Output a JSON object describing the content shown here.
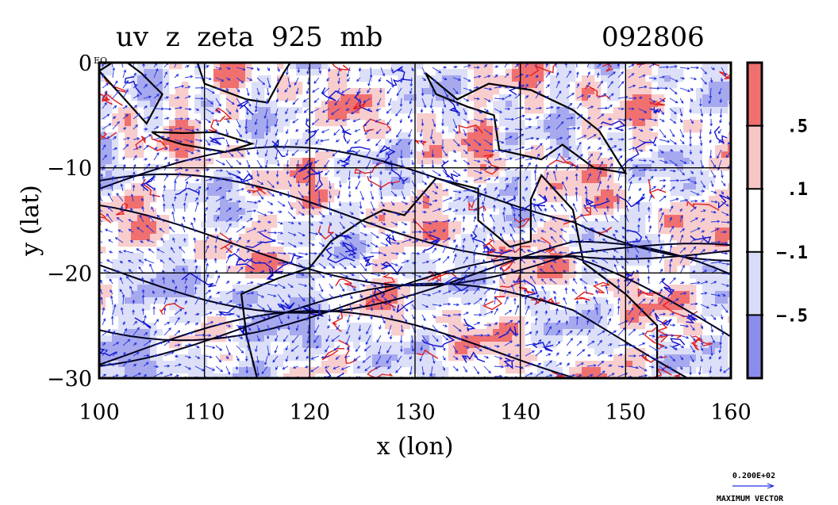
{
  "chart_data": {
    "type": "heatmap",
    "title": "uv  z  zeta  925  mb",
    "date_label": "092806",
    "xlabel": "x (lon)",
    "ylabel": "y (lat)",
    "xlim": [
      100,
      160
    ],
    "ylim": [
      -30,
      0
    ],
    "x_ticks": [
      {
        "value": 100,
        "label": "100"
      },
      {
        "value": 110,
        "label": "110"
      },
      {
        "value": 120,
        "label": "120"
      },
      {
        "value": 130,
        "label": "130"
      },
      {
        "value": 140,
        "label": "140"
      },
      {
        "value": 150,
        "label": "150"
      },
      {
        "value": 160,
        "label": "160"
      }
    ],
    "y_ticks": [
      {
        "value": 0,
        "label": "0"
      },
      {
        "value": -10,
        "label": "−10"
      },
      {
        "value": -20,
        "label": "−20"
      },
      {
        "value": -30,
        "label": "−30"
      }
    ],
    "corner_label": "EQ",
    "grid": true,
    "colorbar": {
      "levels": [
        ".5",
        ".1",
        "−.1",
        "−.5"
      ],
      "colors": [
        "#f07070",
        "#f6c6c6",
        "#ffffff",
        "#d9dcf6",
        "#8c8cec"
      ]
    },
    "contour_colors": {
      "positive": "#e02020",
      "negative": "#1010d0",
      "height": "#000020"
    },
    "vector_color": "#2030e0",
    "reference_vector": {
      "value_label": "0.200E+02",
      "caption": "MAXIMUM VECTOR"
    }
  }
}
